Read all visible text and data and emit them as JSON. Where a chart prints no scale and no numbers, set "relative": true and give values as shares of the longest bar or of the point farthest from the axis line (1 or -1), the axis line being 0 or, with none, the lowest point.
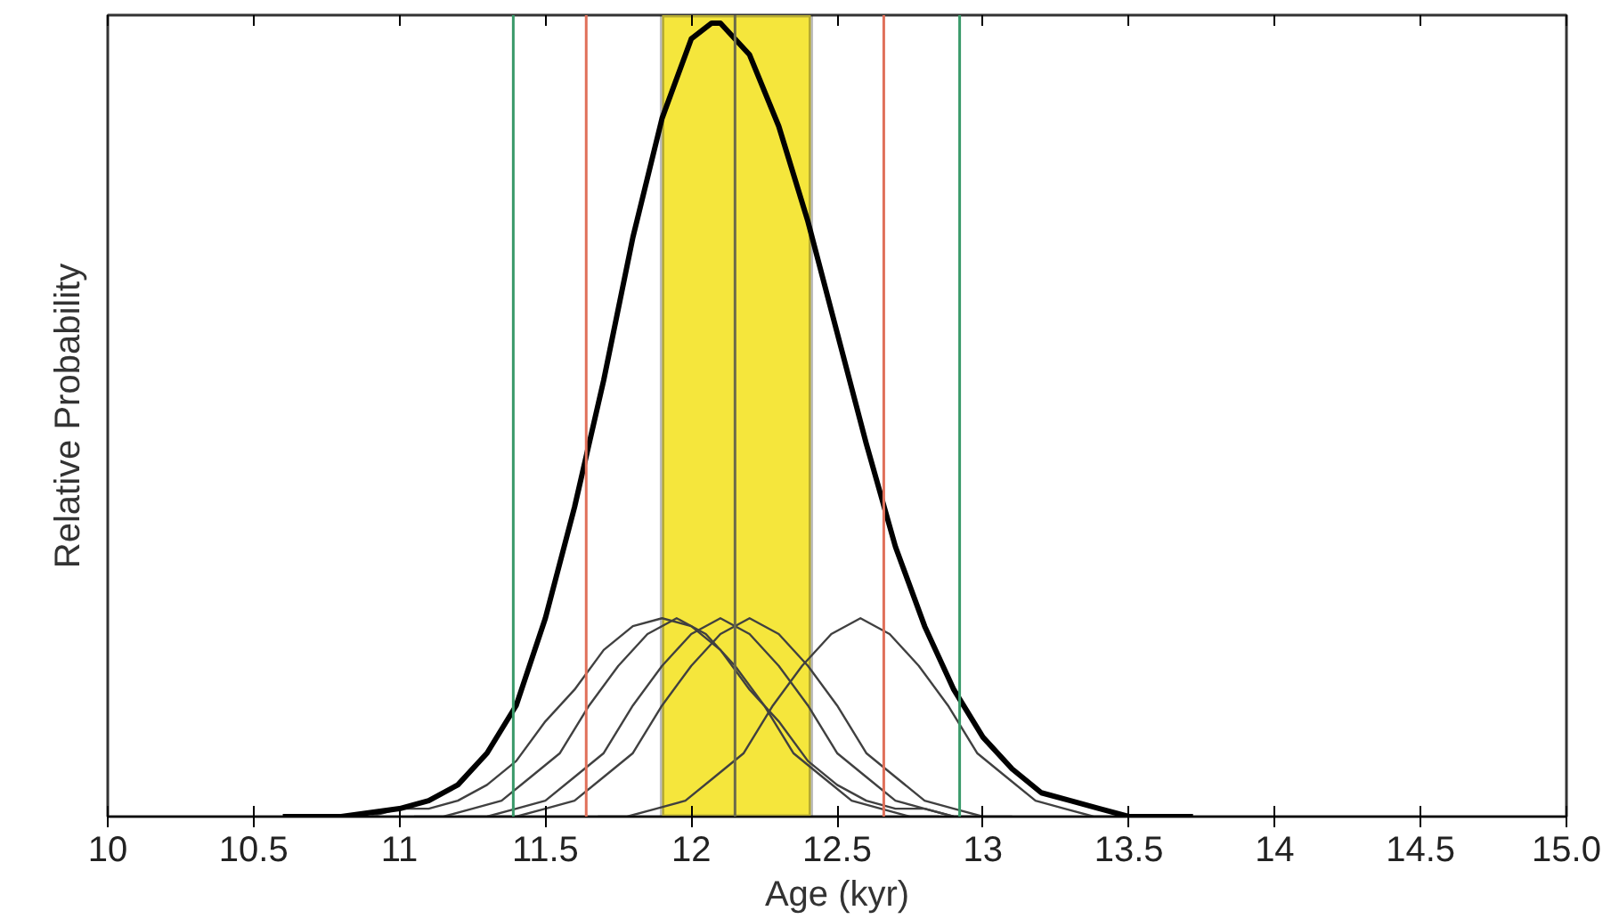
{
  "chart_data": {
    "type": "line",
    "relative": true,
    "xlabel": "Age (kyr)",
    "ylabel": "Relative Probability",
    "xlim": [
      10,
      15
    ],
    "xticks": [
      10,
      10.5,
      11,
      11.5,
      12,
      12.5,
      13,
      13.5,
      14,
      14.5,
      {
        "value": 15,
        "label": "15.0"
      }
    ],
    "grid": false,
    "marker": "none",
    "line_style": "solid",
    "bands": [
      {
        "axis": "x",
        "from": 11.9,
        "to": 12.41,
        "label": null,
        "color": "#f5e63c"
      }
    ],
    "ref_lines": [
      {
        "axis": "x",
        "value": 11.39,
        "label": null,
        "color": "#3a9a6a"
      },
      {
        "axis": "x",
        "value": 12.92,
        "label": null,
        "color": "#3a9a6a"
      },
      {
        "axis": "x",
        "value": 11.64,
        "label": null,
        "color": "#e0705a"
      },
      {
        "axis": "x",
        "value": 12.66,
        "label": null,
        "color": "#e0705a"
      },
      {
        "axis": "x",
        "value": 12.15,
        "label": null,
        "color": "#6b6b4a"
      }
    ],
    "series": [
      {
        "color": "#404040",
        "x": [
          10.9,
          11.0,
          11.1,
          11.2,
          11.3,
          11.4,
          11.5,
          11.6,
          11.7,
          11.8,
          11.9,
          12.0,
          12.1,
          12.2,
          12.3,
          12.4,
          12.5,
          12.6,
          12.7,
          12.8,
          12.9
        ],
        "values": [
          0.0,
          0.01,
          0.01,
          0.02,
          0.04,
          0.07,
          0.12,
          0.16,
          0.21,
          0.24,
          0.25,
          0.24,
          0.21,
          0.16,
          0.12,
          0.07,
          0.04,
          0.02,
          0.01,
          0.01,
          0.0
        ]
      },
      {
        "color": "#404040",
        "x": [
          11.05,
          11.15,
          11.25,
          11.35,
          11.45,
          11.55,
          11.65,
          11.75,
          11.85,
          11.95,
          12.05,
          12.15,
          12.25,
          12.35,
          12.45,
          12.55,
          12.65,
          12.75,
          12.85
        ],
        "values": [
          0.0,
          0.0,
          0.01,
          0.02,
          0.05,
          0.08,
          0.14,
          0.19,
          0.23,
          0.25,
          0.23,
          0.19,
          0.14,
          0.08,
          0.05,
          0.02,
          0.01,
          0.0,
          0.0
        ]
      },
      {
        "color": "#404040",
        "x": [
          11.2,
          11.3,
          11.4,
          11.5,
          11.6,
          11.7,
          11.8,
          11.9,
          12.0,
          12.1,
          12.2,
          12.3,
          12.4,
          12.5,
          12.6,
          12.7,
          12.8,
          12.9,
          13.0
        ],
        "values": [
          0.0,
          0.0,
          0.01,
          0.02,
          0.05,
          0.08,
          0.14,
          0.19,
          0.23,
          0.25,
          0.23,
          0.19,
          0.14,
          0.08,
          0.05,
          0.02,
          0.01,
          0.0,
          0.0
        ]
      },
      {
        "color": "#404040",
        "x": [
          11.3,
          11.4,
          11.5,
          11.6,
          11.7,
          11.8,
          11.9,
          12.0,
          12.1,
          12.2,
          12.3,
          12.4,
          12.5,
          12.6,
          12.7,
          12.8,
          12.9,
          13.0,
          13.1
        ],
        "values": [
          0.0,
          0.0,
          0.01,
          0.02,
          0.05,
          0.08,
          0.14,
          0.19,
          0.23,
          0.25,
          0.23,
          0.19,
          0.14,
          0.08,
          0.05,
          0.02,
          0.01,
          0.0,
          0.0
        ]
      },
      {
        "color": "#404040",
        "x": [
          11.68,
          11.78,
          11.88,
          11.98,
          12.08,
          12.18,
          12.28,
          12.38,
          12.48,
          12.58,
          12.68,
          12.78,
          12.88,
          12.98,
          13.08,
          13.18,
          13.28,
          13.38,
          13.48
        ],
        "values": [
          0.0,
          0.0,
          0.01,
          0.02,
          0.05,
          0.08,
          0.14,
          0.19,
          0.23,
          0.25,
          0.23,
          0.19,
          0.14,
          0.08,
          0.05,
          0.02,
          0.01,
          0.0,
          0.0
        ]
      },
      {
        "color": "#000000",
        "x": [
          10.6,
          10.8,
          11.0,
          11.1,
          11.2,
          11.3,
          11.4,
          11.5,
          11.6,
          11.7,
          11.8,
          11.9,
          12.0,
          12.07,
          12.1,
          12.2,
          12.3,
          12.4,
          12.5,
          12.6,
          12.7,
          12.8,
          12.9,
          13.0,
          13.1,
          13.2,
          13.3,
          13.4,
          13.5,
          13.6,
          13.72
        ],
        "values": [
          0.0,
          0.0,
          0.01,
          0.02,
          0.04,
          0.08,
          0.14,
          0.25,
          0.39,
          0.55,
          0.73,
          0.88,
          0.98,
          1.0,
          1.0,
          0.96,
          0.87,
          0.75,
          0.61,
          0.47,
          0.34,
          0.24,
          0.16,
          0.1,
          0.06,
          0.03,
          0.02,
          0.01,
          0.0,
          0.0,
          0.0
        ]
      }
    ]
  }
}
